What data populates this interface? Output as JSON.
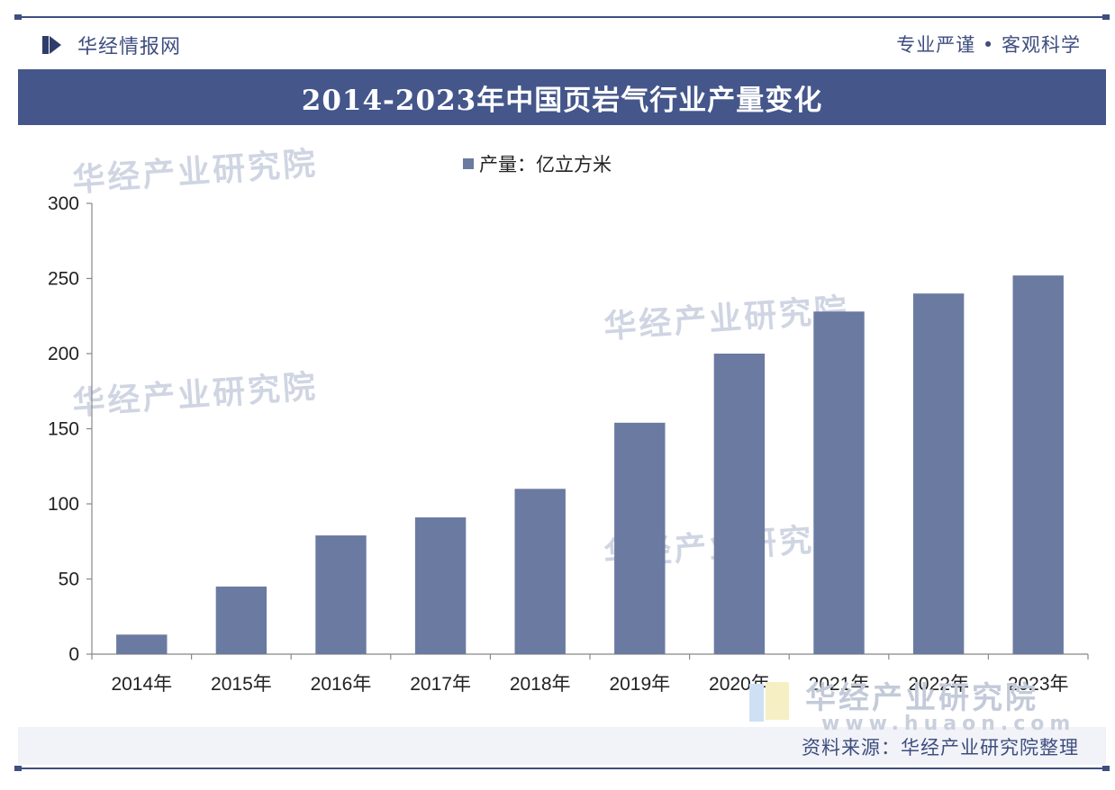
{
  "header": {
    "brand": "华经情报网",
    "motto": "专业严谨 • 客观科学",
    "icon": "huajing-logo-icon"
  },
  "watermark": {
    "text": "华经产业研究院",
    "url": "www.huaon.com"
  },
  "source": "资料来源：华经产业研究院整理",
  "colors": {
    "accent": "#44568a",
    "bar": "#6b7aa1"
  },
  "chart_data": {
    "type": "bar",
    "title": "2014-2023年中国页岩气行业产量变化",
    "categories": [
      "2014年",
      "2015年",
      "2016年",
      "2017年",
      "2018年",
      "2019年",
      "2020年",
      "2021年",
      "2022年",
      "2023年"
    ],
    "series": [
      {
        "name": "产量：亿立方米",
        "values": [
          13,
          45,
          79,
          91,
          110,
          154,
          200,
          228,
          240,
          252
        ]
      }
    ],
    "yticks": [
      0,
      50,
      100,
      150,
      200,
      250,
      300
    ],
    "ylim": [
      0,
      300
    ],
    "xlabel": "",
    "ylabel": "",
    "legend": "top-center",
    "grid": false
  }
}
